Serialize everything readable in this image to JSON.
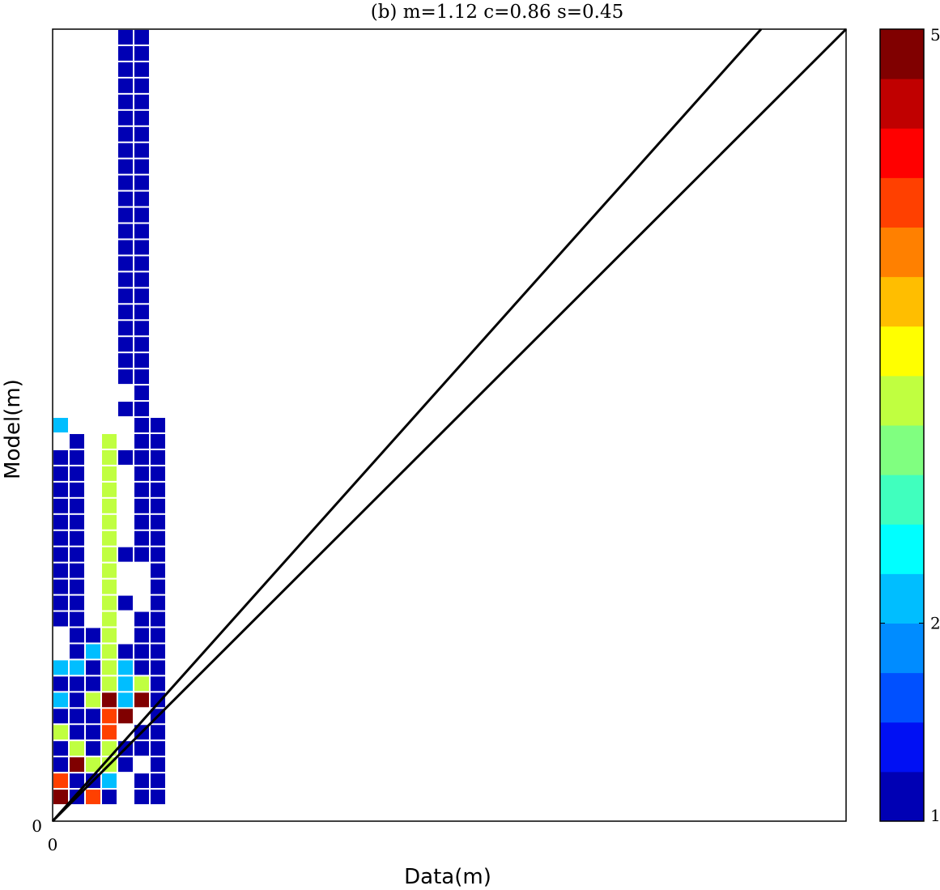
{
  "chart_data": {
    "type": "heatmap",
    "title": "(b) m=1.12 c=0.86 s=0.45",
    "xlabel": "Data(m)",
    "ylabel": "Model(m)",
    "x_tick_labels": [
      "0"
    ],
    "y_tick_labels": [
      "0"
    ],
    "colorbar": {
      "min": 1,
      "max": 5,
      "tick_labels": [
        "1",
        "2",
        "5"
      ],
      "tick_values": [
        1,
        2,
        5
      ],
      "colors": [
        "#0000b4",
        "#0010f4",
        "#0050ff",
        "#008cff",
        "#00beff",
        "#00ffff",
        "#40ffbe",
        "#80ff80",
        "#c0ff40",
        "#ffff00",
        "#ffbe00",
        "#ff8000",
        "#ff4000",
        "#ff0000",
        "#c00000",
        "#800000"
      ]
    },
    "grid": false,
    "lines": [
      {
        "slope": 1.12,
        "intercept": 0,
        "color": "#000000"
      },
      {
        "slope": 1.0,
        "intercept": 0,
        "color": "#000000"
      }
    ],
    "bins": {
      "nx": 49,
      "ny": 49,
      "cells": [
        [
          0,
          1,
          5
        ],
        [
          0,
          2,
          4
        ],
        [
          0,
          3,
          1
        ],
        [
          0,
          4,
          1
        ],
        [
          0,
          5,
          3
        ],
        [
          0,
          6,
          1
        ],
        [
          0,
          7,
          2
        ],
        [
          0,
          8,
          1
        ],
        [
          0,
          9,
          2
        ],
        [
          0,
          12,
          1
        ],
        [
          0,
          13,
          1
        ],
        [
          0,
          14,
          1
        ],
        [
          0,
          15,
          1
        ],
        [
          0,
          16,
          1
        ],
        [
          0,
          17,
          1
        ],
        [
          0,
          18,
          1
        ],
        [
          0,
          19,
          1
        ],
        [
          0,
          20,
          1
        ],
        [
          0,
          21,
          1
        ],
        [
          0,
          22,
          1
        ],
        [
          0,
          24,
          2
        ],
        [
          1,
          1,
          1
        ],
        [
          1,
          2,
          1
        ],
        [
          1,
          3,
          5
        ],
        [
          1,
          4,
          3
        ],
        [
          1,
          5,
          1
        ],
        [
          1,
          6,
          1
        ],
        [
          1,
          7,
          1
        ],
        [
          1,
          8,
          1
        ],
        [
          1,
          9,
          2
        ],
        [
          1,
          10,
          1
        ],
        [
          1,
          11,
          1
        ],
        [
          1,
          12,
          1
        ],
        [
          1,
          13,
          1
        ],
        [
          1,
          14,
          1
        ],
        [
          1,
          15,
          1
        ],
        [
          1,
          16,
          1
        ],
        [
          1,
          17,
          1
        ],
        [
          1,
          18,
          1
        ],
        [
          1,
          19,
          1
        ],
        [
          1,
          20,
          1
        ],
        [
          1,
          21,
          1
        ],
        [
          1,
          22,
          1
        ],
        [
          1,
          23,
          1
        ],
        [
          2,
          1,
          4
        ],
        [
          2,
          2,
          1
        ],
        [
          2,
          3,
          3
        ],
        [
          2,
          4,
          1
        ],
        [
          2,
          5,
          1
        ],
        [
          2,
          6,
          1
        ],
        [
          2,
          7,
          3
        ],
        [
          2,
          8,
          1
        ],
        [
          2,
          9,
          1
        ],
        [
          2,
          10,
          2
        ],
        [
          2,
          11,
          1
        ],
        [
          3,
          1,
          1
        ],
        [
          3,
          2,
          2
        ],
        [
          3,
          3,
          3
        ],
        [
          3,
          4,
          3
        ],
        [
          3,
          5,
          4
        ],
        [
          3,
          6,
          4
        ],
        [
          3,
          7,
          5
        ],
        [
          3,
          8,
          3
        ],
        [
          3,
          9,
          3
        ],
        [
          3,
          10,
          3
        ],
        [
          3,
          11,
          3
        ],
        [
          3,
          12,
          3
        ],
        [
          3,
          13,
          3
        ],
        [
          3,
          14,
          3
        ],
        [
          3,
          15,
          3
        ],
        [
          3,
          16,
          3
        ],
        [
          3,
          17,
          3
        ],
        [
          3,
          18,
          3
        ],
        [
          3,
          19,
          3
        ],
        [
          3,
          20,
          3
        ],
        [
          3,
          21,
          3
        ],
        [
          3,
          22,
          3
        ],
        [
          3,
          23,
          3
        ],
        [
          4,
          3,
          1
        ],
        [
          4,
          4,
          1
        ],
        [
          4,
          6,
          5
        ],
        [
          4,
          7,
          2
        ],
        [
          4,
          8,
          2
        ],
        [
          4,
          9,
          2
        ],
        [
          4,
          10,
          1
        ],
        [
          4,
          13,
          1
        ],
        [
          4,
          16,
          1
        ],
        [
          4,
          22,
          1
        ],
        [
          4,
          25,
          1
        ],
        [
          4,
          27,
          1
        ],
        [
          4,
          28,
          1
        ],
        [
          4,
          29,
          1
        ],
        [
          4,
          30,
          1
        ],
        [
          4,
          31,
          1
        ],
        [
          4,
          32,
          1
        ],
        [
          4,
          33,
          1
        ],
        [
          4,
          34,
          1
        ],
        [
          4,
          35,
          1
        ],
        [
          4,
          36,
          1
        ],
        [
          4,
          37,
          1
        ],
        [
          4,
          38,
          1
        ],
        [
          4,
          39,
          1
        ],
        [
          4,
          40,
          1
        ],
        [
          4,
          41,
          1
        ],
        [
          4,
          42,
          1
        ],
        [
          4,
          43,
          1
        ],
        [
          4,
          44,
          1
        ],
        [
          4,
          45,
          1
        ],
        [
          4,
          46,
          1
        ],
        [
          4,
          47,
          1
        ],
        [
          4,
          48,
          1
        ],
        [
          5,
          1,
          1
        ],
        [
          5,
          2,
          1
        ],
        [
          5,
          4,
          1
        ],
        [
          5,
          5,
          1
        ],
        [
          5,
          7,
          5
        ],
        [
          5,
          8,
          3
        ],
        [
          5,
          9,
          1
        ],
        [
          5,
          10,
          1
        ],
        [
          5,
          11,
          1
        ],
        [
          5,
          12,
          1
        ],
        [
          5,
          16,
          1
        ],
        [
          5,
          17,
          1
        ],
        [
          5,
          18,
          1
        ],
        [
          5,
          19,
          1
        ],
        [
          5,
          20,
          1
        ],
        [
          5,
          21,
          1
        ],
        [
          5,
          22,
          1
        ],
        [
          5,
          23,
          1
        ],
        [
          5,
          24,
          1
        ],
        [
          5,
          25,
          1
        ],
        [
          5,
          26,
          1
        ],
        [
          5,
          27,
          1
        ],
        [
          5,
          28,
          1
        ],
        [
          5,
          29,
          1
        ],
        [
          5,
          30,
          1
        ],
        [
          5,
          31,
          1
        ],
        [
          5,
          32,
          1
        ],
        [
          5,
          33,
          1
        ],
        [
          5,
          34,
          1
        ],
        [
          5,
          35,
          1
        ],
        [
          5,
          36,
          1
        ],
        [
          5,
          37,
          1
        ],
        [
          5,
          38,
          1
        ],
        [
          5,
          39,
          1
        ],
        [
          5,
          40,
          1
        ],
        [
          5,
          41,
          1
        ],
        [
          5,
          42,
          1
        ],
        [
          5,
          43,
          1
        ],
        [
          5,
          44,
          1
        ],
        [
          5,
          45,
          1
        ],
        [
          5,
          46,
          1
        ],
        [
          5,
          47,
          1
        ],
        [
          5,
          48,
          1
        ],
        [
          6,
          1,
          1
        ],
        [
          6,
          2,
          1
        ],
        [
          6,
          3,
          1
        ],
        [
          6,
          4,
          1
        ],
        [
          6,
          5,
          1
        ],
        [
          6,
          6,
          1
        ],
        [
          6,
          7,
          1
        ],
        [
          6,
          8,
          1
        ],
        [
          6,
          9,
          1
        ],
        [
          6,
          10,
          1
        ],
        [
          6,
          11,
          1
        ],
        [
          6,
          12,
          1
        ],
        [
          6,
          13,
          1
        ],
        [
          6,
          14,
          1
        ],
        [
          6,
          15,
          1
        ],
        [
          6,
          16,
          1
        ],
        [
          6,
          17,
          1
        ],
        [
          6,
          18,
          1
        ],
        [
          6,
          19,
          1
        ],
        [
          6,
          20,
          1
        ],
        [
          6,
          21,
          1
        ],
        [
          6,
          22,
          1
        ],
        [
          6,
          23,
          1
        ],
        [
          6,
          24,
          1
        ]
      ]
    }
  }
}
